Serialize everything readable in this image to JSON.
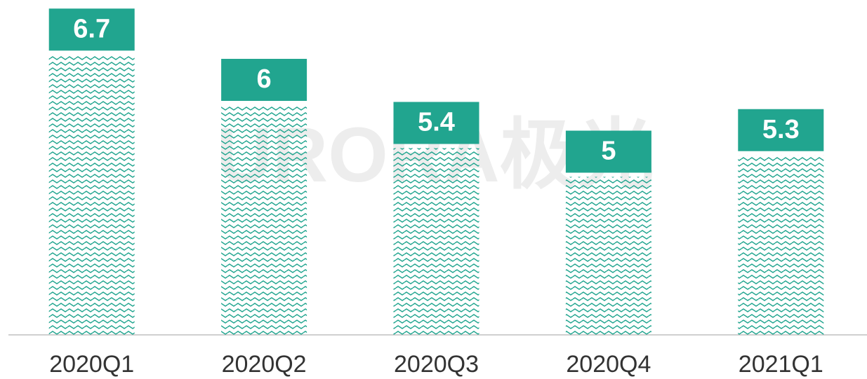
{
  "chart_data": {
    "type": "bar",
    "watermark": "URORA极光",
    "categories": [
      "2020Q1",
      "2020Q2",
      "2020Q3",
      "2020Q4",
      "2021Q1"
    ],
    "values": [
      6.7,
      6.0,
      5.4,
      5.0,
      5.3
    ],
    "color": "#21a58f",
    "ylim": [
      2.8,
      7.2
    ]
  }
}
